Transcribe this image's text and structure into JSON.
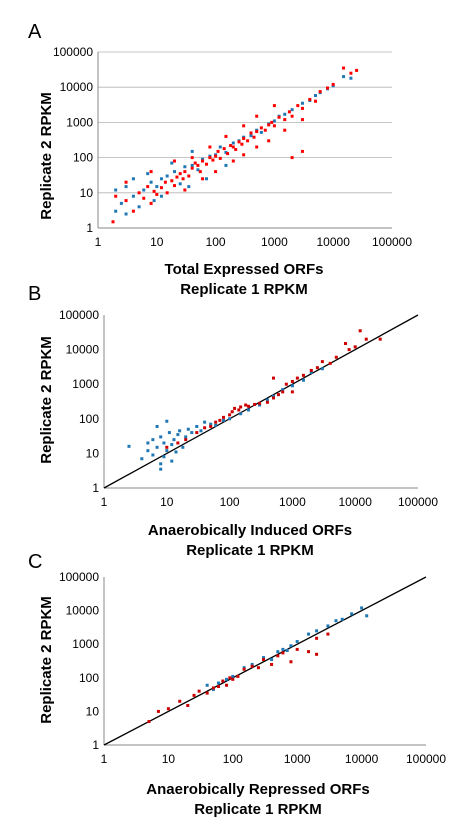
{
  "chart_data": [
    {
      "panel": "A",
      "type": "scatter",
      "xscale": "log",
      "yscale": "log",
      "xlim": [
        1,
        100000
      ],
      "ylim": [
        1,
        100000
      ],
      "xticks": [
        "1",
        "10",
        "100",
        "1000",
        "10000",
        "100000"
      ],
      "yticks": [
        "1",
        "10",
        "100",
        "1000",
        "10000",
        "100000"
      ],
      "xlabel": [
        "Total Expressed ORFs",
        "Replicate 1 RPKM"
      ],
      "ylabel": "Replicate 2 RPKM",
      "grid": true,
      "fit_line": false,
      "series": [
        {
          "color": "#1f77b4",
          "points": [
            [
              2,
              3
            ],
            [
              3,
              2.5
            ],
            [
              2.5,
              5
            ],
            [
              4,
              8
            ],
            [
              5,
              4
            ],
            [
              6,
              12
            ],
            [
              8,
              20
            ],
            [
              10,
              15
            ],
            [
              12,
              25
            ],
            [
              15,
              30
            ],
            [
              20,
              40
            ],
            [
              25,
              18
            ],
            [
              30,
              55
            ],
            [
              40,
              60
            ],
            [
              50,
              45
            ],
            [
              60,
              90
            ],
            [
              80,
              110
            ],
            [
              100,
              120
            ],
            [
              120,
              200
            ],
            [
              150,
              140
            ],
            [
              200,
              260
            ],
            [
              250,
              300
            ],
            [
              300,
              380
            ],
            [
              400,
              420
            ],
            [
              500,
              600
            ],
            [
              600,
              520
            ],
            [
              800,
              900
            ],
            [
              1000,
              1100
            ],
            [
              1200,
              1500
            ],
            [
              1500,
              1700
            ],
            [
              2000,
              2300
            ],
            [
              3000,
              3500
            ],
            [
              4000,
              4200
            ],
            [
              5000,
              5800
            ],
            [
              6000,
              7000
            ],
            [
              8000,
              9000
            ],
            [
              10000,
              11000
            ],
            [
              15000,
              20000
            ],
            [
              20000,
              18000
            ],
            [
              3,
              15
            ],
            [
              4,
              25
            ],
            [
              2,
              12
            ],
            [
              7,
              35
            ],
            [
              9,
              6
            ],
            [
              12,
              8
            ],
            [
              18,
              70
            ],
            [
              35,
              15
            ],
            [
              70,
              25
            ],
            [
              150,
              60
            ],
            [
              40,
              150
            ]
          ]
        },
        {
          "color": "#ff0000",
          "points": [
            [
              1.8,
              1.5
            ],
            [
              2,
              8
            ],
            [
              3,
              6
            ],
            [
              4,
              3
            ],
            [
              5,
              10
            ],
            [
              6,
              7
            ],
            [
              7,
              15
            ],
            [
              8,
              5
            ],
            [
              9,
              11
            ],
            [
              10,
              9
            ],
            [
              12,
              14
            ],
            [
              14,
              20
            ],
            [
              15,
              10
            ],
            [
              18,
              22
            ],
            [
              20,
              16
            ],
            [
              22,
              28
            ],
            [
              25,
              35
            ],
            [
              28,
              25
            ],
            [
              30,
              40
            ],
            [
              35,
              30
            ],
            [
              40,
              50
            ],
            [
              45,
              70
            ],
            [
              50,
              60
            ],
            [
              55,
              40
            ],
            [
              60,
              80
            ],
            [
              70,
              65
            ],
            [
              80,
              100
            ],
            [
              90,
              85
            ],
            [
              100,
              110
            ],
            [
              110,
              150
            ],
            [
              120,
              95
            ],
            [
              140,
              180
            ],
            [
              160,
              130
            ],
            [
              180,
              220
            ],
            [
              200,
              200
            ],
            [
              220,
              170
            ],
            [
              250,
              280
            ],
            [
              280,
              240
            ],
            [
              300,
              350
            ],
            [
              350,
              300
            ],
            [
              400,
              500
            ],
            [
              450,
              380
            ],
            [
              500,
              550
            ],
            [
              600,
              700
            ],
            [
              700,
              600
            ],
            [
              800,
              850
            ],
            [
              900,
              1000
            ],
            [
              1000,
              800
            ],
            [
              1200,
              1400
            ],
            [
              1500,
              1200
            ],
            [
              1800,
              2000
            ],
            [
              2000,
              1500
            ],
            [
              2500,
              3000
            ],
            [
              3000,
              2500
            ],
            [
              4000,
              4500
            ],
            [
              5000,
              4000
            ],
            [
              6000,
              7500
            ],
            [
              8000,
              9500
            ],
            [
              10000,
              12000
            ],
            [
              15000,
              35000
            ],
            [
              20000,
              25000
            ],
            [
              25000,
              30000
            ],
            [
              30,
              12
            ],
            [
              60,
              25
            ],
            [
              100,
              40
            ],
            [
              200,
              80
            ],
            [
              300,
              120
            ],
            [
              500,
              200
            ],
            [
              800,
              300
            ],
            [
              1500,
              600
            ],
            [
              3000,
              1200
            ],
            [
              40,
              100
            ],
            [
              80,
              200
            ],
            [
              150,
              400
            ],
            [
              300,
              800
            ],
            [
              500,
              1500
            ],
            [
              1000,
              3000
            ],
            [
              3,
              20
            ],
            [
              8,
              40
            ],
            [
              20,
              80
            ],
            [
              3000,
              150
            ],
            [
              2000,
              100
            ]
          ]
        }
      ]
    },
    {
      "panel": "B",
      "type": "scatter",
      "xscale": "log",
      "yscale": "log",
      "xlim": [
        1,
        100000
      ],
      "ylim": [
        1,
        100000
      ],
      "xticks": [
        "1",
        "10",
        "100",
        "1000",
        "10000",
        "100000"
      ],
      "yticks": [
        "1",
        "10",
        "100",
        "1000",
        "10000",
        "100000"
      ],
      "xlabel": [
        "Anaerobically Induced ORFs",
        "Replicate 1 RPKM"
      ],
      "ylabel": "Replicate 2 RPKM",
      "grid": false,
      "fit_line": true,
      "series": [
        {
          "color": "#1f77b4",
          "points": [
            [
              2.5,
              16
            ],
            [
              4,
              7
            ],
            [
              5,
              20
            ],
            [
              5,
              12
            ],
            [
              6,
              25
            ],
            [
              6,
              9
            ],
            [
              7,
              15
            ],
            [
              8,
              5
            ],
            [
              8,
              30
            ],
            [
              9,
              20
            ],
            [
              9,
              8
            ],
            [
              10,
              85
            ],
            [
              10,
              12
            ],
            [
              11,
              40
            ],
            [
              12,
              18
            ],
            [
              12,
              6
            ],
            [
              13,
              25
            ],
            [
              14,
              11
            ],
            [
              15,
              35
            ],
            [
              16,
              45
            ],
            [
              18,
              15
            ],
            [
              20,
              30
            ],
            [
              22,
              50
            ],
            [
              25,
              40
            ],
            [
              30,
              60
            ],
            [
              35,
              45
            ],
            [
              40,
              80
            ],
            [
              50,
              70
            ],
            [
              60,
              65
            ],
            [
              80,
              90
            ],
            [
              100,
              100
            ],
            [
              150,
              140
            ],
            [
              200,
              180
            ],
            [
              300,
              250
            ],
            [
              400,
              350
            ],
            [
              500,
              450
            ],
            [
              700,
              700
            ],
            [
              1000,
              900
            ],
            [
              1500,
              1300
            ],
            [
              2000,
              2200
            ],
            [
              3000,
              2800
            ],
            [
              8,
              3.5
            ],
            [
              7,
              60
            ]
          ]
        },
        {
          "color": "#cc0000",
          "points": [
            [
              10,
              15
            ],
            [
              15,
              20
            ],
            [
              20,
              25
            ],
            [
              30,
              40
            ],
            [
              40,
              55
            ],
            [
              50,
              60
            ],
            [
              60,
              80
            ],
            [
              70,
              90
            ],
            [
              80,
              110
            ],
            [
              100,
              130
            ],
            [
              110,
              160
            ],
            [
              120,
              200
            ],
            [
              140,
              180
            ],
            [
              150,
              220
            ],
            [
              180,
              250
            ],
            [
              200,
              230
            ],
            [
              250,
              260
            ],
            [
              300,
              280
            ],
            [
              400,
              300
            ],
            [
              500,
              400
            ],
            [
              600,
              500
            ],
            [
              700,
              600
            ],
            [
              800,
              1000
            ],
            [
              1000,
              1200
            ],
            [
              1200,
              1500
            ],
            [
              1500,
              1800
            ],
            [
              2000,
              2500
            ],
            [
              2500,
              3000
            ],
            [
              3000,
              4500
            ],
            [
              4000,
              4000
            ],
            [
              5000,
              6000
            ],
            [
              7000,
              15000
            ],
            [
              8000,
              10000
            ],
            [
              10000,
              12000
            ],
            [
              12000,
              35000
            ],
            [
              15000,
              20000
            ],
            [
              25000,
              20000
            ],
            [
              500,
              1500
            ],
            [
              1000,
              600
            ]
          ]
        }
      ]
    },
    {
      "panel": "C",
      "type": "scatter",
      "xscale": "log",
      "yscale": "log",
      "xlim": [
        1,
        100000
      ],
      "ylim": [
        1,
        100000
      ],
      "xticks": [
        "1",
        "10",
        "100",
        "1000",
        "10000",
        "100000"
      ],
      "yticks": [
        "1",
        "10",
        "100",
        "1000",
        "10000",
        "100000"
      ],
      "xlabel": [
        "Anaerobically Repressed ORFs",
        "Replicate 1 RPKM"
      ],
      "ylabel": "Replicate 2 RPKM",
      "grid": false,
      "fit_line": true,
      "series": [
        {
          "color": "#1f77b4",
          "points": [
            [
              40,
              60
            ],
            [
              50,
              45
            ],
            [
              60,
              70
            ],
            [
              80,
              90
            ],
            [
              100,
              110
            ],
            [
              150,
              200
            ],
            [
              200,
              250
            ],
            [
              300,
              400
            ],
            [
              400,
              350
            ],
            [
              500,
              600
            ],
            [
              600,
              700
            ],
            [
              700,
              650
            ],
            [
              800,
              900
            ],
            [
              1000,
              1200
            ],
            [
              1500,
              2000
            ],
            [
              2000,
              2500
            ],
            [
              3000,
              3500
            ],
            [
              4000,
              5000
            ],
            [
              5000,
              5500
            ],
            [
              7000,
              8000
            ],
            [
              10000,
              12000
            ],
            [
              12000,
              7000
            ]
          ]
        },
        {
          "color": "#cc0000",
          "points": [
            [
              5,
              5
            ],
            [
              7,
              10
            ],
            [
              10,
              12
            ],
            [
              15,
              20
            ],
            [
              20,
              15
            ],
            [
              25,
              30
            ],
            [
              30,
              40
            ],
            [
              40,
              35
            ],
            [
              50,
              50
            ],
            [
              60,
              55
            ],
            [
              70,
              80
            ],
            [
              80,
              60
            ],
            [
              90,
              100
            ],
            [
              100,
              90
            ],
            [
              120,
              110
            ],
            [
              150,
              180
            ],
            [
              200,
              220
            ],
            [
              250,
              200
            ],
            [
              300,
              350
            ],
            [
              400,
              250
            ],
            [
              500,
              450
            ],
            [
              600,
              550
            ],
            [
              800,
              300
            ],
            [
              1000,
              700
            ],
            [
              1500,
              600
            ],
            [
              2000,
              500
            ],
            [
              2000,
              1500
            ],
            [
              3000,
              2000
            ]
          ]
        }
      ]
    }
  ]
}
